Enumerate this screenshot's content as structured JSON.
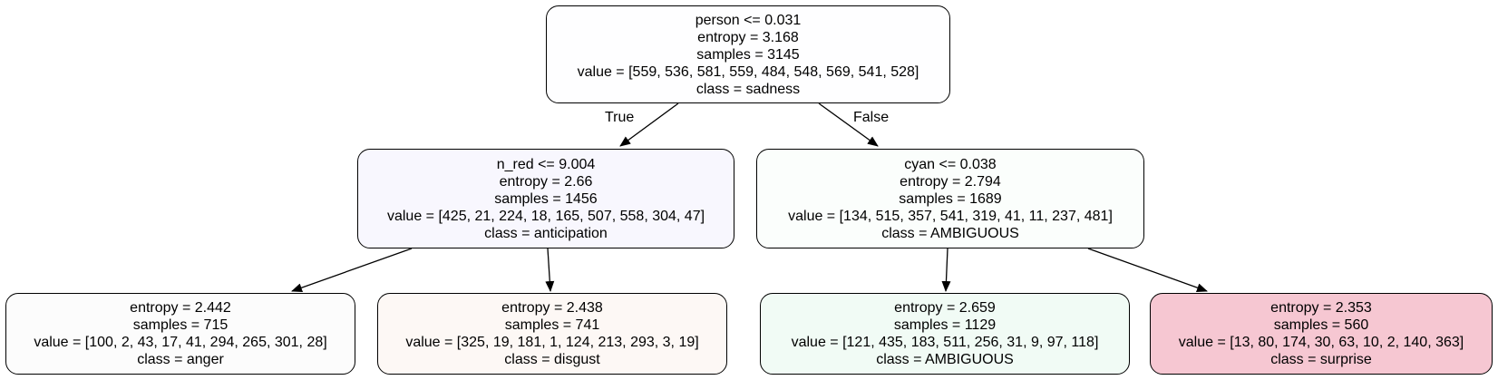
{
  "nodes": [
    {
      "split": "person <= 0.031",
      "entropy": "entropy = 3.168",
      "samples": "samples = 3145",
      "value": "value = [559, 536, 581, 559, 484, 548, 569, 541, 528]",
      "class": "class = sadness",
      "fill": "#fefeff"
    },
    {
      "split": "n_red <= 9.004",
      "entropy": "entropy = 2.66",
      "samples": "samples = 1456",
      "value": "value = [425, 21, 224, 18, 165, 507, 558, 304, 47]",
      "class": "class = anticipation",
      "fill": "#f8f7fe"
    },
    {
      "split": "cyan <= 0.038",
      "entropy": "entropy = 2.794",
      "samples": "samples = 1689",
      "value": "value = [134, 515, 357, 541, 319, 41, 11, 237, 481]",
      "class": "class = AMBIGUOUS",
      "fill": "#fbfefc"
    },
    {
      "entropy": "entropy = 2.442",
      "samples": "samples = 715",
      "value": "value = [100, 2, 43, 17, 41, 294, 265, 301, 28]",
      "class": "class = anger",
      "fill": "#fcfcfc"
    },
    {
      "entropy": "entropy = 2.438",
      "samples": "samples = 741",
      "value": "value = [325, 19, 181, 1, 124, 213, 293, 3, 19]",
      "class": "class = disgust",
      "fill": "#fdf8f5"
    },
    {
      "entropy": "entropy = 2.659",
      "samples": "samples = 1129",
      "value": "value = [121, 435, 183, 511, 256, 31, 9, 97, 118]",
      "class": "class = AMBIGUOUS",
      "fill": "#f1fbf5"
    },
    {
      "entropy": "entropy = 2.353",
      "samples": "samples = 560",
      "value": "value = [13, 80, 174, 30, 63, 10, 2, 140, 363]",
      "class": "class = surprise",
      "fill": "#f6c7d2"
    }
  ],
  "edge_labels": {
    "left": "True",
    "right": "False"
  }
}
